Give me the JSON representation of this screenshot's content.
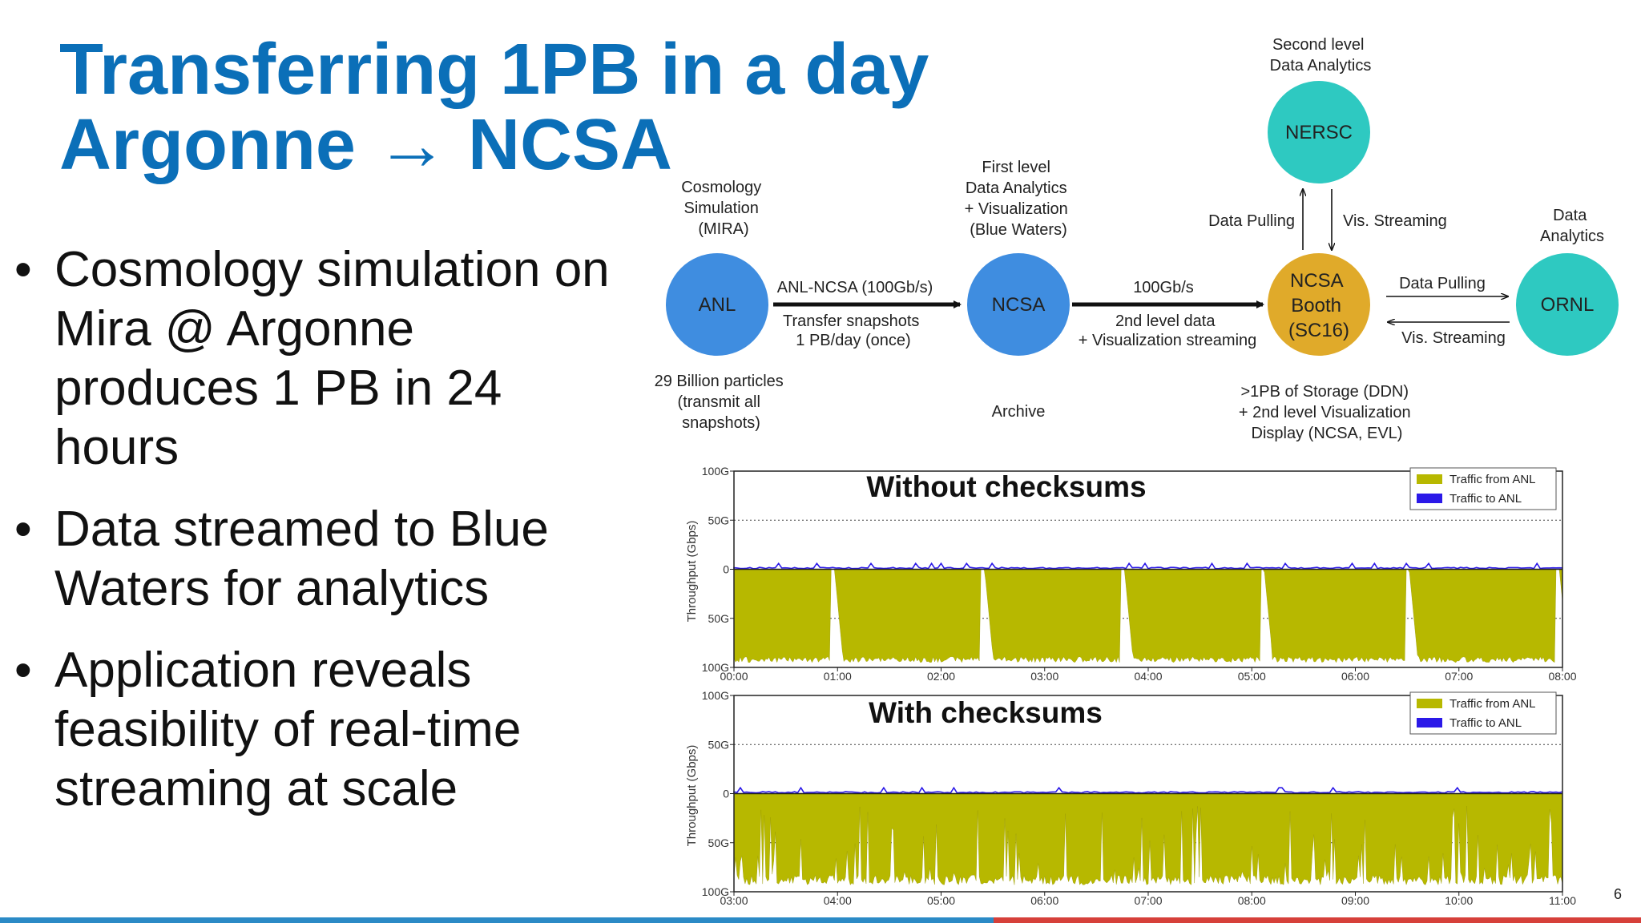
{
  "slide": {
    "title_line1": "Transferring 1PB in a day",
    "title_line2": "Argonne → NCSA",
    "bullets": [
      "Cosmology simulation on Mira @ Argonne produces 1 PB in 24 hours",
      "Data streamed to Blue Waters for analytics",
      "Application reveals feasibility of real-time streaming at scale"
    ],
    "page_number": "6"
  },
  "diagram": {
    "nodes": {
      "anl": {
        "label": "ANL",
        "color": "#3f8de0"
      },
      "ncsa": {
        "label": "NCSA",
        "color": "#3f8de0"
      },
      "booth": {
        "label_lines": [
          "NCSA",
          "Booth",
          "(SC16)"
        ],
        "color": "#e0aa2a"
      },
      "nersc": {
        "label": "NERSC",
        "color": "#2ec9c1"
      },
      "ornl": {
        "label": "ORNL",
        "color": "#2ec9c1"
      }
    },
    "captions": {
      "anl_top": [
        "Cosmology",
        "Simulation",
        "(MIRA)"
      ],
      "anl_bottom": [
        "29 Billion particles",
        "(transmit all",
        "snapshots)"
      ],
      "ncsa_top": [
        "First level",
        "Data Analytics",
        "+ Visualization",
        "(Blue Waters)"
      ],
      "ncsa_bottom": "Archive",
      "nersc_top": [
        "Second level",
        "Data Analytics"
      ],
      "ornl_top": [
        "Data",
        "Analytics"
      ],
      "booth_bottom": [
        ">1PB of Storage (DDN)",
        "+ 2nd level Visualization",
        "Display (NCSA, EVL)"
      ]
    },
    "edges": {
      "anl_ncsa_top": "ANL-NCSA (100Gb/s)",
      "anl_ncsa_bottom": [
        "Transfer snapshots",
        "1 PB/day (once)"
      ],
      "ncsa_booth_top": "100Gb/s",
      "ncsa_booth_bottom": [
        "2nd level data",
        "+ Visualization streaming"
      ],
      "nersc_pull": "Data Pulling",
      "nersc_stream": "Vis. Streaming",
      "ornl_pull": "Data Pulling",
      "ornl_stream": "Vis. Streaming"
    }
  },
  "chart_data": [
    {
      "type": "area",
      "title": "Without checksums",
      "ylabel": "Throughput (Gbps)",
      "ytick_labels": [
        "100G",
        "50G",
        "0",
        "50G",
        "100G"
      ],
      "ylim": [
        -100,
        100
      ],
      "x_tick_labels": [
        "00:00",
        "01:00",
        "02:00",
        "03:00",
        "04:00",
        "05:00",
        "06:00",
        "07:00",
        "08:00"
      ],
      "legend": [
        {
          "name": "Traffic from ANL",
          "color": "#b7b800"
        },
        {
          "name": "Traffic to ANL",
          "color": "#2b19e8"
        }
      ],
      "series": [
        {
          "name": "Traffic from ANL",
          "direction": "down",
          "typical_gbps": 92,
          "dips_to_zero_at_hours": [
            0.95,
            2.4,
            3.75,
            5.1,
            6.5,
            7.95
          ]
        },
        {
          "name": "Traffic to ANL",
          "direction": "up",
          "typical_gbps": 2
        }
      ]
    },
    {
      "type": "area",
      "title": "With checksums",
      "ylabel": "Throughput (Gbps)",
      "ytick_labels": [
        "100G",
        "50G",
        "0",
        "50G",
        "100G"
      ],
      "ylim": [
        -100,
        100
      ],
      "x_tick_labels": [
        "03:00",
        "04:00",
        "05:00",
        "06:00",
        "07:00",
        "08:00",
        "09:00",
        "10:00",
        "11:00"
      ],
      "legend": [
        {
          "name": "Traffic from ANL",
          "color": "#b7b800"
        },
        {
          "name": "Traffic to ANL",
          "color": "#2b19e8"
        }
      ],
      "series": [
        {
          "name": "Traffic from ANL",
          "direction": "down",
          "typical_gbps": 88,
          "pattern": "highly variable, frequent dips"
        },
        {
          "name": "Traffic to ANL",
          "direction": "up",
          "typical_gbps": 2
        }
      ]
    }
  ]
}
